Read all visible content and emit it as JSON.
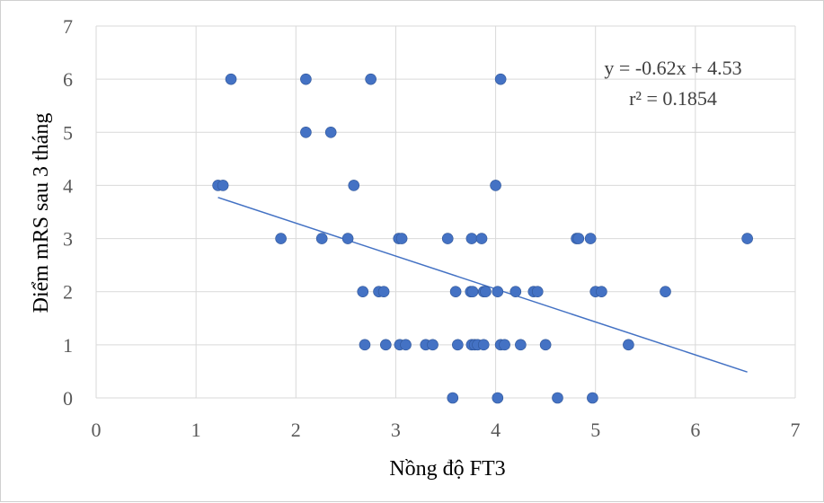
{
  "chart_data": {
    "type": "scatter",
    "xlabel": "Nồng độ FT3",
    "ylabel": "Điểm mRS sau 3 tháng",
    "xlim": [
      0,
      7
    ],
    "ylim": [
      0,
      7
    ],
    "xticks": [
      "0",
      "1",
      "2",
      "3",
      "4",
      "5",
      "6",
      "7"
    ],
    "yticks": [
      "0",
      "1",
      "2",
      "3",
      "4",
      "5",
      "6",
      "7"
    ],
    "grid": true,
    "colors": {
      "point": "#4472C4",
      "trendline": "#4472C4",
      "grid": "#d9d9d9"
    },
    "series": [
      {
        "points": [
          [
            1.35,
            6
          ],
          [
            2.1,
            6
          ],
          [
            2.75,
            6
          ],
          [
            4.05,
            6
          ],
          [
            2.1,
            5
          ],
          [
            2.35,
            5
          ],
          [
            1.22,
            4
          ],
          [
            1.27,
            4
          ],
          [
            2.58,
            4
          ],
          [
            4.0,
            4
          ],
          [
            1.85,
            3
          ],
          [
            2.26,
            3
          ],
          [
            2.52,
            3
          ],
          [
            3.03,
            3
          ],
          [
            3.06,
            3
          ],
          [
            3.52,
            3
          ],
          [
            3.76,
            3
          ],
          [
            3.86,
            3
          ],
          [
            4.81,
            3
          ],
          [
            4.83,
            3
          ],
          [
            4.95,
            3
          ],
          [
            6.52,
            3
          ],
          [
            2.67,
            2
          ],
          [
            2.83,
            2
          ],
          [
            2.88,
            2
          ],
          [
            3.6,
            2
          ],
          [
            3.75,
            2
          ],
          [
            3.77,
            2
          ],
          [
            3.88,
            2
          ],
          [
            3.9,
            2
          ],
          [
            4.02,
            2
          ],
          [
            4.2,
            2
          ],
          [
            4.38,
            2
          ],
          [
            4.42,
            2
          ],
          [
            5.0,
            2
          ],
          [
            5.06,
            2
          ],
          [
            5.7,
            2
          ],
          [
            2.69,
            1
          ],
          [
            2.9,
            1
          ],
          [
            3.04,
            1
          ],
          [
            3.1,
            1
          ],
          [
            3.3,
            1
          ],
          [
            3.37,
            1
          ],
          [
            3.62,
            1
          ],
          [
            3.76,
            1
          ],
          [
            3.79,
            1
          ],
          [
            3.82,
            1
          ],
          [
            3.88,
            1
          ],
          [
            4.05,
            1
          ],
          [
            4.09,
            1
          ],
          [
            4.25,
            1
          ],
          [
            4.5,
            1
          ],
          [
            5.33,
            1
          ],
          [
            3.57,
            0
          ],
          [
            4.02,
            0
          ],
          [
            4.62,
            0
          ],
          [
            4.97,
            0
          ]
        ]
      }
    ],
    "trendline": {
      "slope": -0.62,
      "intercept": 4.53,
      "x_range": [
        1.22,
        6.52
      ]
    },
    "annotations": {
      "equation": "y = -0.62x + 4.53",
      "r_squared": "r² = 0.1854"
    }
  }
}
